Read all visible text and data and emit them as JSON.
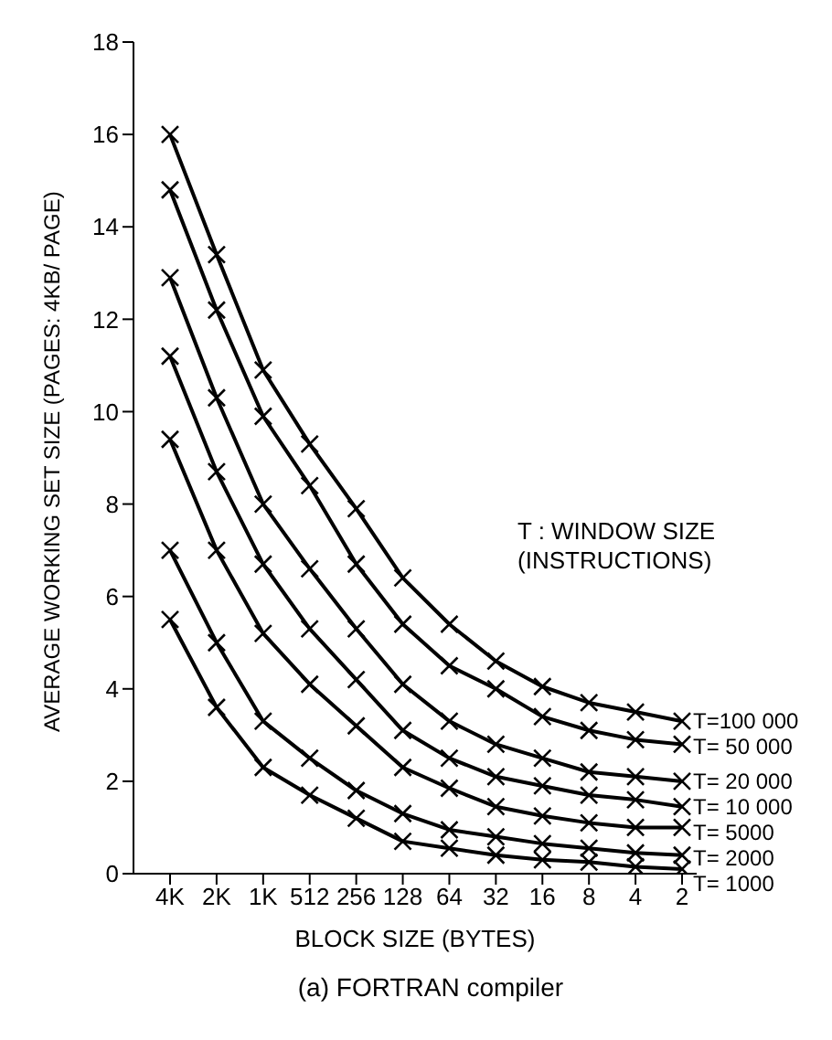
{
  "chart_data": {
    "type": "line",
    "xlabel": "BLOCK SIZE (BYTES)",
    "ylabel": "AVERAGE WORKING SET SIZE (PAGES: 4KB/ PAGE)",
    "legend_title": "T : WINDOW SIZE (INSTRUCTIONS)",
    "annotations": [
      "(a) FORTRAN compiler"
    ],
    "categories": [
      "4K",
      "2K",
      "1K",
      "512",
      "256",
      "128",
      "64",
      "32",
      "16",
      "8",
      "4",
      "2"
    ],
    "ylim": [
      0,
      18
    ],
    "yticks": [
      0,
      2,
      4,
      6,
      8,
      10,
      12,
      14,
      16,
      18
    ],
    "grid": false,
    "legend": false,
    "marker": "cross",
    "line_style": "solid",
    "series": [
      {
        "name": "T=100 000",
        "color": "#000000",
        "values": [
          16.0,
          13.4,
          10.9,
          9.3,
          7.9,
          6.4,
          5.4,
          4.6,
          4.05,
          3.7,
          3.5,
          3.3
        ]
      },
      {
        "name": "T= 50 000",
        "color": "#000000",
        "values": [
          14.8,
          12.2,
          9.9,
          8.4,
          6.7,
          5.4,
          4.5,
          4.0,
          3.4,
          3.1,
          2.9,
          2.8
        ]
      },
      {
        "name": "T= 20 000",
        "color": "#000000",
        "values": [
          12.9,
          10.3,
          8.0,
          6.6,
          5.3,
          4.1,
          3.3,
          2.8,
          2.5,
          2.2,
          2.1,
          2.0
        ]
      },
      {
        "name": "T= 10 000",
        "color": "#000000",
        "values": [
          11.2,
          8.7,
          6.7,
          5.3,
          4.2,
          3.1,
          2.5,
          2.1,
          1.9,
          1.7,
          1.6,
          1.45
        ]
      },
      {
        "name": "T= 5000",
        "color": "#000000",
        "values": [
          9.4,
          7.0,
          5.2,
          4.1,
          3.2,
          2.3,
          1.85,
          1.45,
          1.25,
          1.1,
          1.0,
          1.0
        ]
      },
      {
        "name": "T= 2000",
        "color": "#000000",
        "values": [
          7.0,
          5.0,
          3.3,
          2.5,
          1.8,
          1.3,
          0.95,
          0.8,
          0.65,
          0.55,
          0.45,
          0.4
        ]
      },
      {
        "name": "T= 1000",
        "color": "#000000",
        "values": [
          5.5,
          3.6,
          2.3,
          1.7,
          1.2,
          0.7,
          0.55,
          0.4,
          0.3,
          0.25,
          0.15,
          0.1
        ]
      }
    ]
  }
}
